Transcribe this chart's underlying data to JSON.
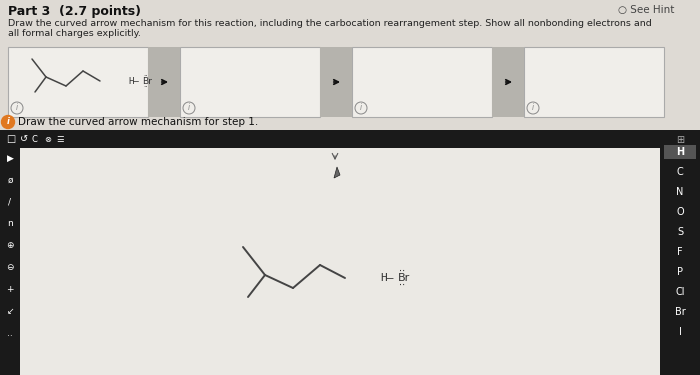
{
  "title_text": "Part 3  (2.7 points)",
  "hint_text": "See Hint",
  "description": "Draw the curved arrow mechanism for this reaction, including the carbocation rearrangement step. Show all nonbonding electrons and all formal charges explicitly.",
  "step_label": "Draw the curved arrow mechanism for step 1.",
  "bg_color": "#dedad4",
  "box_color": "#f0eeea",
  "box_border": "#aaaaaa",
  "conn_color": "#b5b3ad",
  "toolbar_bg": "#1a1a1a",
  "sidebar_bg": "#1a1a1a",
  "canvas_bg": "#ebe9e4",
  "mol_color": "#444444",
  "sidebar_items": [
    "H",
    "C",
    "N",
    "O",
    "S",
    "F",
    "P",
    "Cl",
    "Br",
    "I"
  ]
}
